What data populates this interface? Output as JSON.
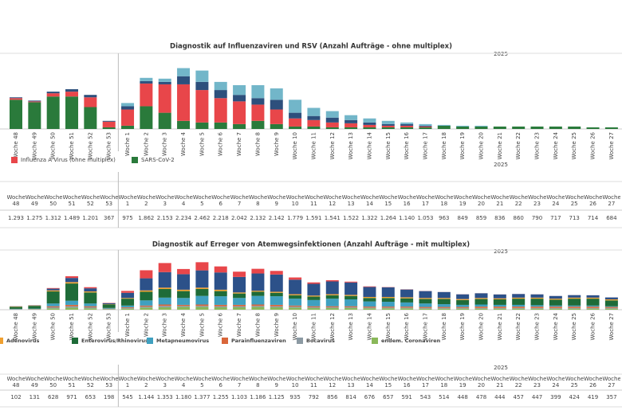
{
  "chart_data": [
    {
      "type": "stacked-bar",
      "title": "Diagnostik auf Influenzaviren und RSV (Anzahl Aufträge - ohne multiplex)",
      "year_label": "2025",
      "categories": [
        "Woche 48",
        "Woche 49",
        "Woche 50",
        "Woche 51",
        "Woche 52",
        "Woche 53",
        "Woche 1",
        "Woche 2",
        "Woche 3",
        "Woche 4",
        "Woche 5",
        "Woche 6",
        "Woche 7",
        "Woche 8",
        "Woche 9",
        "Woche 10",
        "Woche 11",
        "Woche 12",
        "Woche 13",
        "Woche 14",
        "Woche 15",
        "Woche 16",
        "Woche 17",
        "Woche 18",
        "Woche 19",
        "Woche 20",
        "Woche 21",
        "Woche 22",
        "Woche 23",
        "Woche 24",
        "Woche 25",
        "Woche 26",
        "Woche 27"
      ],
      "series": [
        {
          "color": "#72b6c9",
          "values": [
            0,
            0,
            0,
            0,
            0,
            0,
            120,
            120,
            120,
            300,
            420,
            300,
            360,
            480,
            420,
            480,
            300,
            240,
            180,
            150,
            120,
            60,
            60,
            30,
            30,
            30,
            0,
            0,
            0,
            0,
            0,
            0,
            0
          ]
        },
        {
          "color": "#2d4f7c",
          "values": [
            30,
            30,
            60,
            90,
            90,
            30,
            120,
            90,
            90,
            300,
            300,
            300,
            240,
            240,
            360,
            210,
            150,
            180,
            120,
            90,
            60,
            60,
            30,
            0,
            0,
            0,
            0,
            0,
            0,
            0,
            0,
            0,
            0
          ]
        },
        {
          "name": "Influenza A Virus (ohne multiplex)",
          "color": "#e8464a",
          "values": [
            60,
            30,
            120,
            180,
            360,
            210,
            600,
            840,
            1050,
            1350,
            1200,
            900,
            840,
            600,
            540,
            300,
            240,
            180,
            150,
            90,
            60,
            60,
            30,
            0,
            0,
            0,
            0,
            0,
            0,
            0,
            0,
            0,
            0
          ]
        },
        {
          "name": "SARS-CoV-2",
          "color": "#2a7a3b",
          "values": [
            1080,
            990,
            1200,
            1200,
            810,
            60,
            120,
            840,
            600,
            300,
            240,
            240,
            180,
            300,
            180,
            90,
            90,
            60,
            60,
            60,
            60,
            60,
            60,
            120,
            90,
            90,
            90,
            90,
            90,
            90,
            90,
            60,
            60
          ]
        }
      ]
    },
    {
      "type": "stacked-bar",
      "title": "Diagnostik auf Erreger von Atemwegsinfektionen (Anzahl Aufträge - mit multiplex)",
      "year_label": "2025",
      "categories": [
        "Woche 48",
        "Woche 49",
        "Woche 50",
        "Woche 51",
        "Woche 52",
        "Woche 53",
        "Woche 1",
        "Woche 2",
        "Woche 3",
        "Woche 4",
        "Woche 5",
        "Woche 6",
        "Woche 7",
        "Woche 8",
        "Woche 9",
        "Woche 10",
        "Woche 11",
        "Woche 12",
        "Woche 13",
        "Woche 14",
        "Woche 15",
        "Woche 16",
        "Woche 17",
        "Woche 18",
        "Woche 19",
        "Woche 20",
        "Woche 21",
        "Woche 22",
        "Woche 23",
        "Woche 24",
        "Woche 25",
        "Woche 26",
        "Woche 27"
      ],
      "series": [
        {
          "color": "#e8464a",
          "values": [
            2,
            3,
            18,
            51,
            33,
            10,
            55,
            234,
            263,
            150,
            237,
            175,
            153,
            136,
            105,
            65,
            42,
            36,
            24,
            16,
            7,
            5,
            3,
            2,
            2,
            2,
            2,
            2,
            2,
            1,
            1,
            1,
            1
          ]
        },
        {
          "color": "#2c5189",
          "values": [
            5,
            6,
            50,
            120,
            90,
            28,
            150,
            350,
            450,
            450,
            500,
            500,
            450,
            500,
            500,
            420,
            340,
            370,
            360,
            290,
            280,
            226,
            200,
            172,
            136,
            136,
            112,
            105,
            95,
            78,
            73,
            68,
            56
          ]
        },
        {
          "name": "Adenovirus",
          "color": "#f0a030",
          "values": [
            10,
            10,
            30,
            40,
            30,
            10,
            20,
            40,
            40,
            40,
            40,
            40,
            30,
            30,
            30,
            30,
            30,
            30,
            30,
            30,
            30,
            30,
            30,
            30,
            30,
            30,
            30,
            30,
            30,
            30,
            30,
            30,
            30
          ]
        },
        {
          "name": "Enterovirus/Rhinovirus",
          "color": "#1e6b38",
          "values": [
            60,
            80,
            350,
            500,
            320,
            100,
            200,
            250,
            250,
            200,
            200,
            150,
            130,
            120,
            100,
            100,
            100,
            100,
            100,
            100,
            110,
            120,
            130,
            150,
            140,
            160,
            160,
            180,
            190,
            170,
            200,
            200,
            170
          ]
        },
        {
          "name": "Metapneumovirus",
          "color": "#3fa0c0",
          "values": [
            10,
            12,
            80,
            120,
            80,
            20,
            50,
            150,
            200,
            200,
            250,
            250,
            200,
            250,
            250,
            200,
            180,
            220,
            200,
            150,
            140,
            120,
            100,
            80,
            60,
            60,
            50,
            50,
            40,
            30,
            30,
            30,
            20
          ]
        },
        {
          "name": "Parainfluenzaviren",
          "color": "#d9663a",
          "values": [
            5,
            6,
            30,
            40,
            30,
            10,
            20,
            30,
            40,
            30,
            40,
            40,
            40,
            40,
            40,
            30,
            30,
            30,
            30,
            30,
            30,
            30,
            30,
            30,
            30,
            40,
            40,
            40,
            40,
            40,
            40,
            40,
            30
          ]
        },
        {
          "name": "Bocavirus",
          "color": "#8c9aa3",
          "values": [
            5,
            6,
            30,
            40,
            30,
            10,
            20,
            30,
            40,
            30,
            30,
            30,
            30,
            30,
            30,
            30,
            20,
            20,
            20,
            20,
            20,
            20,
            20,
            20,
            20,
            20,
            20,
            20,
            20,
            20,
            20,
            20,
            20
          ]
        },
        {
          "name": "endem. Coronaviren",
          "color": "#8ab85a",
          "values": [
            5,
            8,
            40,
            60,
            40,
            10,
            30,
            60,
            70,
            80,
            80,
            70,
            70,
            80,
            70,
            60,
            50,
            50,
            50,
            40,
            40,
            40,
            30,
            30,
            30,
            30,
            30,
            30,
            30,
            30,
            30,
            30,
            30
          ]
        }
      ]
    }
  ],
  "tables": [
    {
      "year": "2025",
      "cells": [
        "1.293",
        "1.275",
        "1.312",
        "1.489",
        "1.201",
        "367",
        "975",
        "1.862",
        "2.153",
        "2.234",
        "2.462",
        "2.218",
        "2.042",
        "2.132",
        "2.142",
        "1.779",
        "1.591",
        "1.541",
        "1.522",
        "1.322",
        "1.264",
        "1.140",
        "1.053",
        "963",
        "849",
        "859",
        "836",
        "860",
        "790",
        "717",
        "713",
        "714",
        "684"
      ]
    },
    {
      "year": "2025",
      "cells": [
        "102",
        "131",
        "628",
        "971",
        "653",
        "198",
        "545",
        "1.144",
        "1.353",
        "1.180",
        "1.377",
        "1.255",
        "1.103",
        "1.186",
        "1.125",
        "935",
        "792",
        "856",
        "814",
        "676",
        "657",
        "591",
        "543",
        "514",
        "448",
        "478",
        "444",
        "457",
        "447",
        "399",
        "424",
        "419",
        "357"
      ]
    }
  ]
}
